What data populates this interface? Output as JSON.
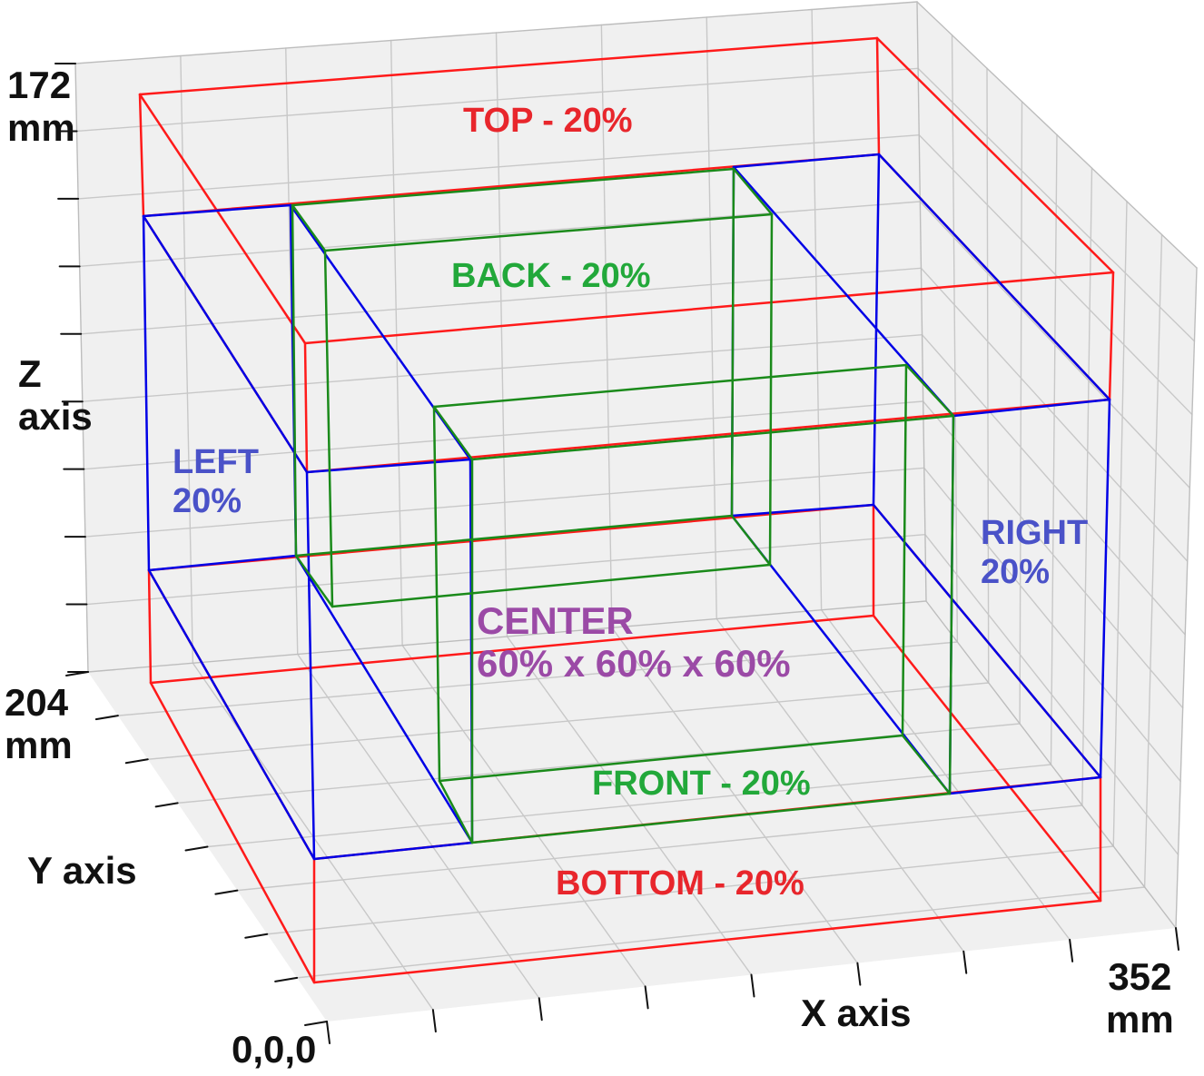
{
  "colors": {
    "pane": "#f0f0f0",
    "grid": "#c8c8c8",
    "axis": "#111111",
    "outer_zone": "#ff1a1a",
    "side_zone": "#0000e6",
    "inner_zone": "#1a8a1a",
    "text_red": "#e8262c",
    "text_blue": "#4a52c8",
    "text_green": "#22a83a",
    "text_purple": "#9b4aa6"
  },
  "axes": {
    "z_max": "172\nmm",
    "z_label": "Z\naxis",
    "y_max": "204\nmm",
    "y_label": "Y axis",
    "x_max": "352\nmm",
    "x_label": "X axis",
    "origin": "0,0,0"
  },
  "zones": {
    "top": "TOP - 20%",
    "back": "BACK - 20%",
    "left": "LEFT\n20%",
    "right": "RIGHT\n20%",
    "center": "CENTER\n60% x 60% x 60%",
    "front": "FRONT - 20%",
    "bottom": "BOTTOM - 20%"
  },
  "build_volume": {
    "x": 352,
    "y": 204,
    "z": 172,
    "unit": "mm"
  },
  "zone_fraction": {
    "edge": 0.2,
    "center": 0.6
  }
}
